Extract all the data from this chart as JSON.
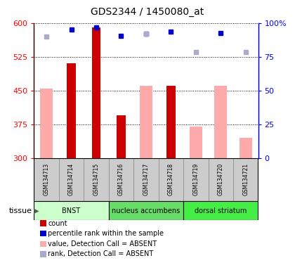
{
  "title": "GDS2344 / 1450080_at",
  "samples": [
    "GSM134713",
    "GSM134714",
    "GSM134715",
    "GSM134716",
    "GSM134717",
    "GSM134718",
    "GSM134719",
    "GSM134720",
    "GSM134721"
  ],
  "ylim_left": [
    300,
    600
  ],
  "ylim_right": [
    0,
    100
  ],
  "yticks_left": [
    300,
    375,
    450,
    525,
    600
  ],
  "yticks_right": [
    0,
    25,
    50,
    75,
    100
  ],
  "count_values": [
    null,
    511,
    590,
    395,
    null,
    460,
    null,
    null,
    null
  ],
  "count_color": "#cc0000",
  "absent_value_values": [
    454,
    null,
    null,
    null,
    461,
    null,
    370,
    461,
    345
  ],
  "absent_value_color": "#ffaaaa",
  "percentile_rank_values": [
    null,
    585,
    590,
    572,
    576,
    581,
    null,
    578,
    null
  ],
  "percentile_rank_color": "#0000cc",
  "absent_rank_values": [
    570,
    null,
    null,
    null,
    576,
    null,
    535,
    null,
    535
  ],
  "absent_rank_color": "#aaaacc",
  "tissue_groups": [
    {
      "label": "BNST",
      "start": 0,
      "end": 3,
      "color": "#ccffcc"
    },
    {
      "label": "nucleus accumbens",
      "start": 3,
      "end": 6,
      "color": "#66dd66"
    },
    {
      "label": "dorsal striatum",
      "start": 6,
      "end": 9,
      "color": "#44ee44"
    }
  ],
  "base_value": 300,
  "count_bar_width": 0.35,
  "absent_bar_width": 0.5
}
